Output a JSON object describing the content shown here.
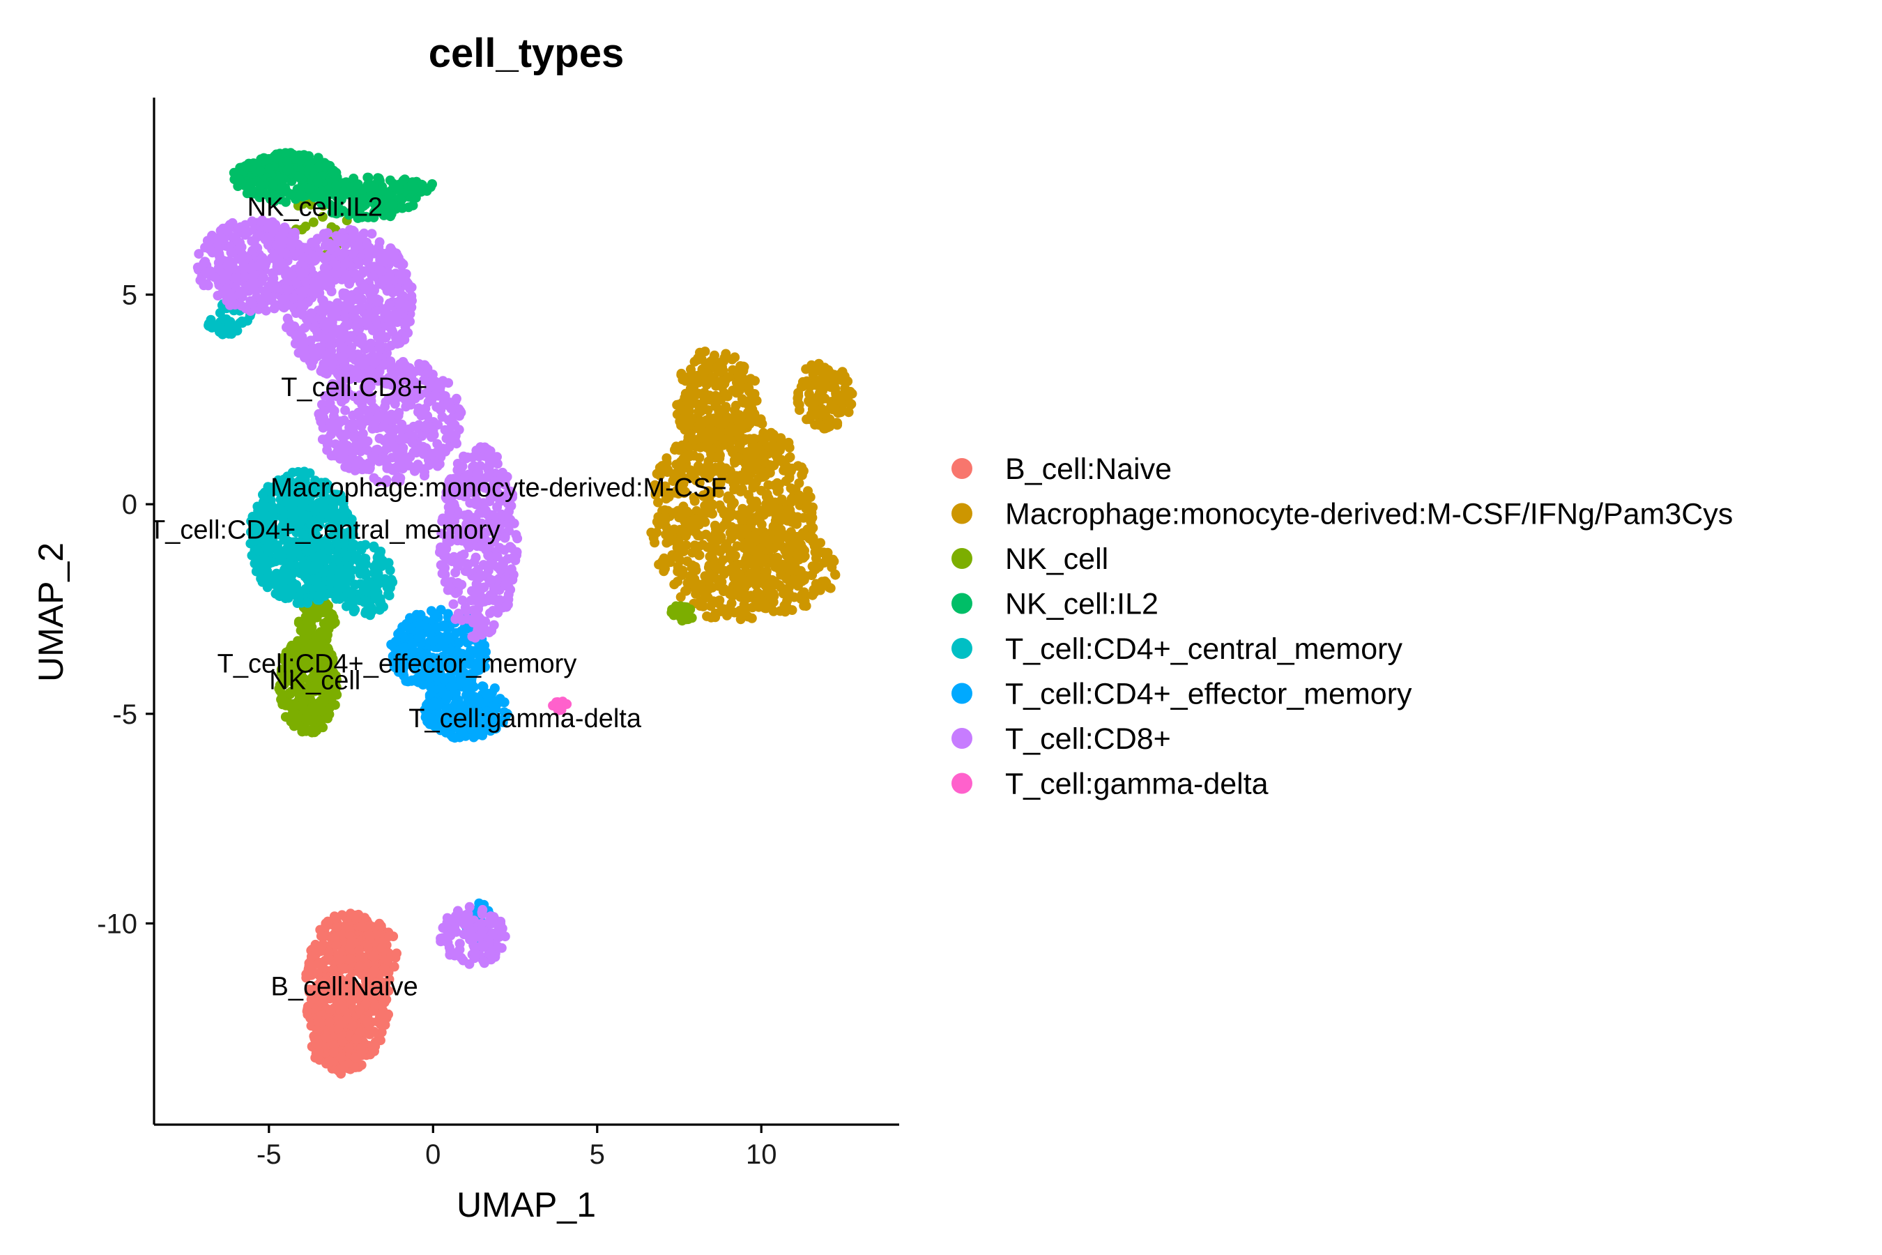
{
  "chart_data": {
    "type": "scatter",
    "title": "cell_types",
    "xlabel": "UMAP_1",
    "ylabel": "UMAP_2",
    "xlim": [
      -8.5,
      14.2
    ],
    "ylim": [
      -14.8,
      9.7
    ],
    "xticks": [
      -5,
      0,
      5,
      10
    ],
    "yticks": [
      5,
      0,
      -5,
      -10
    ],
    "xtick_labels": [
      "-5",
      "0",
      "5",
      "10"
    ],
    "ytick_labels": [
      "5",
      "0",
      "-5",
      "-10"
    ],
    "grid": false,
    "legend_position": "right",
    "series": [
      {
        "name": "B_cell:Naive",
        "color": "#F8766D",
        "label_text": "B_cell:Naive",
        "label_at": [
          -2.7,
          -11.5
        ],
        "regions": [
          {
            "cx": -2.6,
            "cy": -11.6,
            "rx": 1.3,
            "ry": 1.9,
            "n": 500
          },
          {
            "cx": -2.9,
            "cy": -12.9,
            "rx": 0.8,
            "ry": 0.7,
            "n": 140
          },
          {
            "cx": -1.8,
            "cy": -10.6,
            "rx": 0.8,
            "ry": 0.7,
            "n": 90
          }
        ]
      },
      {
        "name": "Macrophage:monocyte-derived:M-CSF/IFNg/Pam3Cys",
        "color": "#CD9600",
        "label_text": "Macrophage:monocyte-derived:M-CSF",
        "label_at": [
          2.0,
          0.4
        ],
        "regions": [
          {
            "cx": 9.1,
            "cy": -0.3,
            "rx": 2.5,
            "ry": 2.5,
            "n": 750
          },
          {
            "cx": 8.6,
            "cy": 2.5,
            "rx": 1.3,
            "ry": 1.2,
            "n": 220
          },
          {
            "cx": 11.9,
            "cy": 2.6,
            "rx": 0.9,
            "ry": 0.8,
            "n": 130
          },
          {
            "cx": 10.6,
            "cy": -1.6,
            "rx": 1.7,
            "ry": 1.0,
            "n": 180
          }
        ]
      },
      {
        "name": "NK_cell",
        "color": "#7CAE00",
        "label_text": "NK_cell",
        "label_at": [
          -3.6,
          -4.2
        ],
        "regions": [
          {
            "cx": -3.8,
            "cy": -4.3,
            "rx": 0.9,
            "ry": 1.2,
            "n": 300
          },
          {
            "cx": -3.5,
            "cy": -2.8,
            "rx": 0.6,
            "ry": 0.5,
            "n": 60
          },
          {
            "cx": -3.6,
            "cy": 6.6,
            "rx": 1.5,
            "ry": 0.9,
            "n": 30
          },
          {
            "cx": 7.6,
            "cy": -2.6,
            "rx": 0.4,
            "ry": 0.2,
            "n": 18
          }
        ]
      },
      {
        "name": "NK_cell:IL2",
        "color": "#00BE67",
        "label_text": "NK_cell:IL2",
        "label_at": [
          -3.6,
          7.1
        ],
        "regions": [
          {
            "cx": -4.5,
            "cy": 7.8,
            "rx": 1.6,
            "ry": 0.6,
            "n": 260
          },
          {
            "cx": -2.0,
            "cy": 7.3,
            "rx": 1.5,
            "ry": 0.5,
            "n": 150
          },
          {
            "cx": -0.6,
            "cy": 7.6,
            "rx": 0.6,
            "ry": 0.2,
            "n": 40
          }
        ]
      },
      {
        "name": "T_cell:CD4+_central_memory",
        "color": "#00BFC4",
        "label_text": "T_cell:CD4+_central_memory",
        "label_at": [
          -3.3,
          -0.6
        ],
        "regions": [
          {
            "cx": -4.0,
            "cy": -0.8,
            "rx": 1.6,
            "ry": 1.6,
            "n": 600
          },
          {
            "cx": -2.2,
            "cy": -1.8,
            "rx": 1.0,
            "ry": 0.9,
            "n": 140
          },
          {
            "cx": -6.2,
            "cy": 4.4,
            "rx": 0.7,
            "ry": 0.4,
            "n": 45
          }
        ]
      },
      {
        "name": "T_cell:CD4+_effector_memory",
        "color": "#00A9FF",
        "label_text": "T_cell:CD4+_effector_memory",
        "label_at": [
          -1.1,
          -3.8
        ],
        "regions": [
          {
            "cx": 0.2,
            "cy": -3.5,
            "rx": 1.5,
            "ry": 1.0,
            "n": 320
          },
          {
            "cx": 1.0,
            "cy": -4.9,
            "rx": 1.3,
            "ry": 0.7,
            "n": 260
          },
          {
            "cx": 1.4,
            "cy": -10.0,
            "rx": 0.4,
            "ry": 0.5,
            "n": 30
          }
        ]
      },
      {
        "name": "T_cell:CD8+",
        "color": "#C77CFF",
        "label_text": "T_cell:CD8+",
        "label_at": [
          -2.4,
          2.8
        ],
        "regions": [
          {
            "cx": -5.4,
            "cy": 5.7,
            "rx": 1.8,
            "ry": 1.1,
            "n": 380
          },
          {
            "cx": -2.6,
            "cy": 4.8,
            "rx": 2.0,
            "ry": 1.8,
            "n": 620
          },
          {
            "cx": -1.3,
            "cy": 2.0,
            "rx": 2.2,
            "ry": 1.5,
            "n": 420
          },
          {
            "cx": 1.4,
            "cy": -0.9,
            "rx": 1.2,
            "ry": 2.3,
            "n": 380
          },
          {
            "cx": 1.2,
            "cy": -10.3,
            "rx": 1.0,
            "ry": 0.7,
            "n": 110
          }
        ]
      },
      {
        "name": "T_cell:gamma-delta",
        "color": "#FF61CC",
        "label_text": "T_cell:gamma-delta",
        "label_at": [
          2.8,
          -5.1
        ],
        "regions": [
          {
            "cx": 3.8,
            "cy": -4.8,
            "rx": 0.3,
            "ry": 0.12,
            "n": 12
          }
        ]
      }
    ]
  }
}
